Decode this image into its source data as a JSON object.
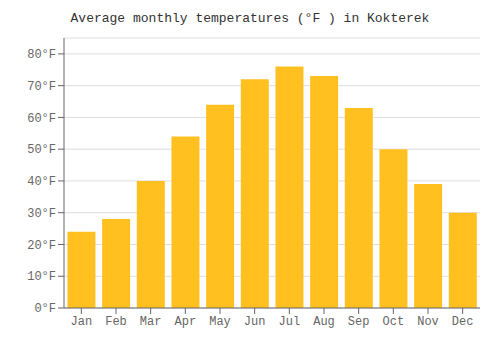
{
  "chart_data": {
    "type": "bar",
    "title": "Average monthly temperatures (°F ) in Kokterek",
    "categories": [
      "Jan",
      "Feb",
      "Mar",
      "Apr",
      "May",
      "Jun",
      "Jul",
      "Aug",
      "Sep",
      "Oct",
      "Nov",
      "Dec"
    ],
    "values": [
      24,
      28,
      40,
      54,
      64,
      72,
      76,
      73,
      63,
      50,
      39,
      30
    ],
    "color": "#FFC020",
    "ylim": [
      0,
      85
    ],
    "yticks": [
      {
        "value": 0,
        "label": "0°F"
      },
      {
        "value": 10,
        "label": "10°F"
      },
      {
        "value": 20,
        "label": "20°F"
      },
      {
        "value": 30,
        "label": "30°F"
      },
      {
        "value": 40,
        "label": "40°F"
      },
      {
        "value": 50,
        "label": "50°F"
      },
      {
        "value": 60,
        "label": "60°F"
      },
      {
        "value": 70,
        "label": "70°F"
      },
      {
        "value": 80,
        "label": "80°F"
      }
    ],
    "grid": true
  }
}
